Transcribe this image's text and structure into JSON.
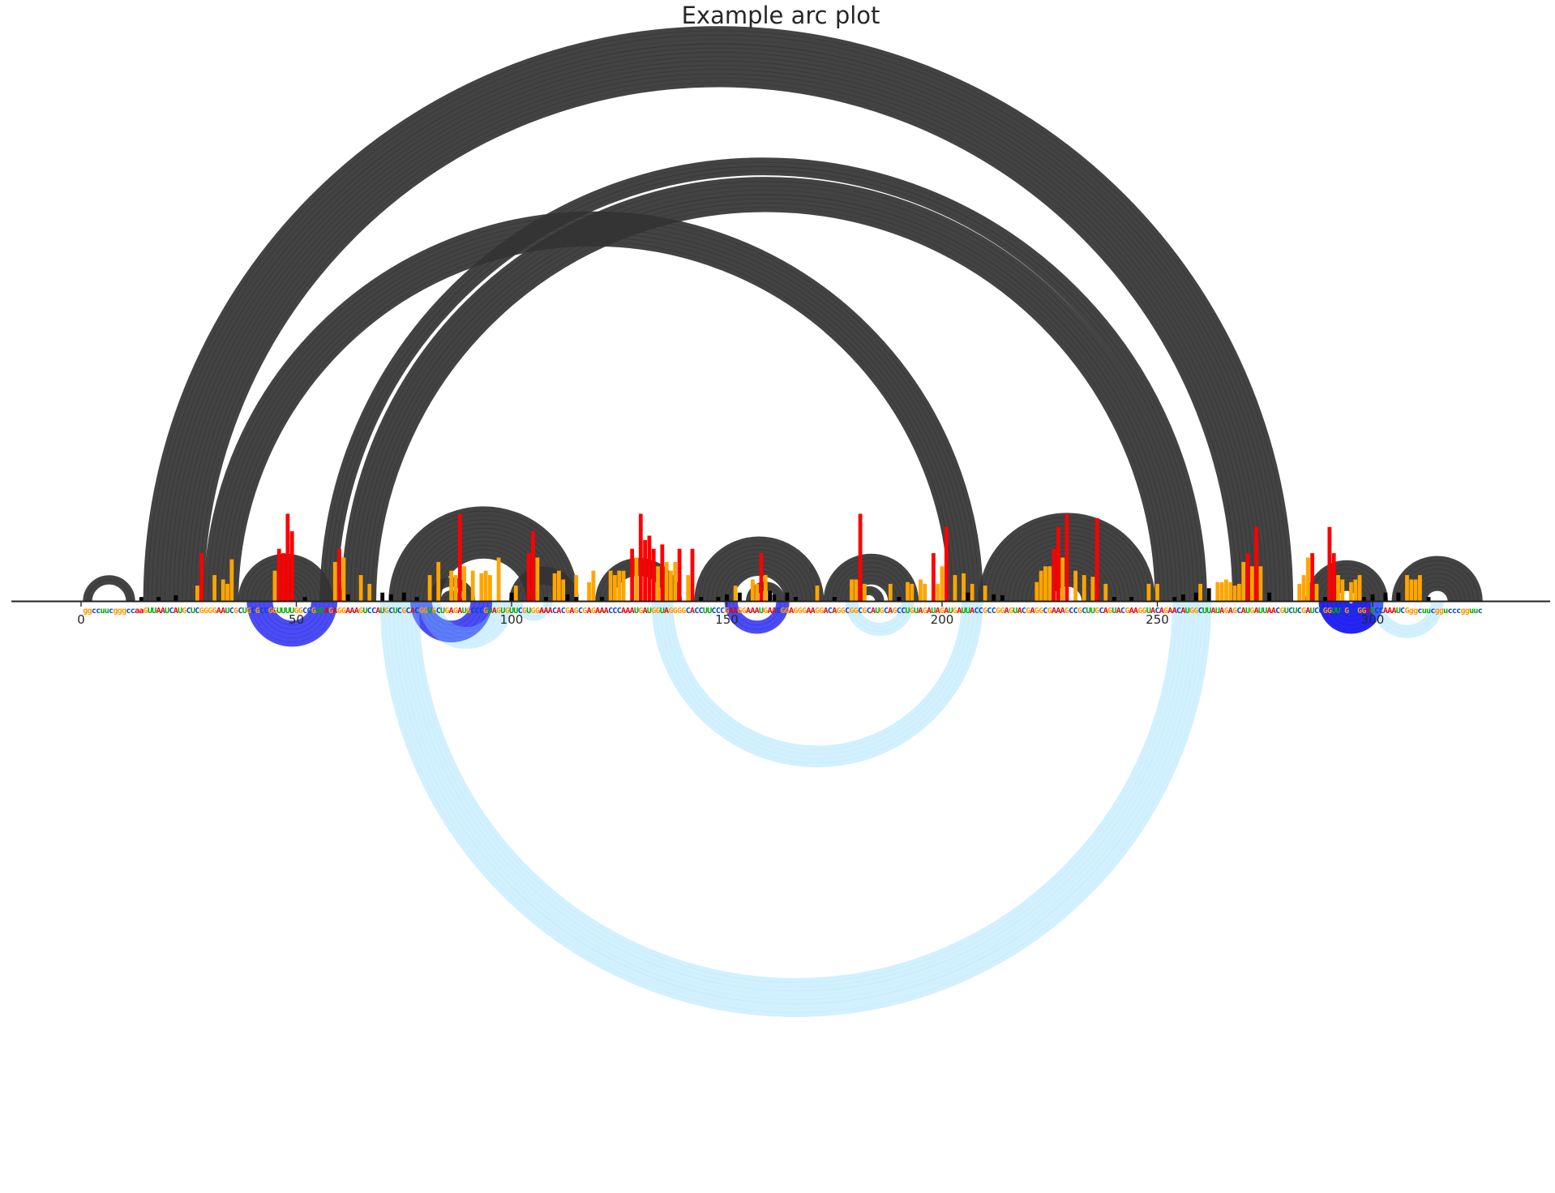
{
  "chart_data": {
    "type": "arc",
    "title": "Example arc plot",
    "xlabel": "",
    "ylabel": "",
    "xlim": [
      -15,
      342
    ],
    "x_ticks": [
      0,
      50,
      100,
      150,
      200,
      250,
      300
    ],
    "grid": false,
    "sequence": "ggccuucgggccaaGUUAAUCAUGCUCGGGGAAUCGCUGCGCCGGUUUUGGCCGUUAGAGGAAAGUCCAUGCUCGCACGGUGCUGAGAUGCCCGUAGUGUUCGUGGAAACACGAGCGAGAAACCCAAAUGAUGGUAGGGGCACCUUCCCGAAGGAAAUGAACGGAGGGAAGGACAGGCGGCGCAUGCAGCCUGUAGAUAGAUGAUUACCGCCGGAGUACGAGGCGAAAGCCGCUUGCAGUACGAAGGUACAGAACAUGGCUUAUAGAGCAUGAUUAACGUCUCGAUCCGGUUCGCCGGAUCCAAAUCGggcuucggucccgguuc",
    "nucleotide_colors": {
      "A": "#e60000",
      "C": "#0044cc",
      "G": "#ff9900",
      "U": "#00aa00"
    },
    "helices_top": [
      {
        "i": 1,
        "j": 12,
        "n": 2
      },
      {
        "i": 15,
        "j": 281,
        "n": 14
      },
      {
        "i": 29,
        "j": 209,
        "n": 8
      },
      {
        "i": 37,
        "j": 58,
        "n": 11
      },
      {
        "i": 56,
        "j": 261,
        "n": 2
      },
      {
        "i": 58,
        "j": 259,
        "n": 2
      },
      {
        "i": 61,
        "j": 257,
        "n": 8
      },
      {
        "i": 72,
        "j": 115,
        "n": 12
      },
      {
        "i": 81,
        "j": 91,
        "n": 2
      },
      {
        "i": 84,
        "j": 88,
        "n": 2
      },
      {
        "i": 100,
        "j": 115,
        "n": 4
      },
      {
        "i": 120,
        "j": 139,
        "n": 4
      },
      {
        "i": 143,
        "j": 172,
        "n": 9
      },
      {
        "i": 155,
        "j": 163,
        "n": 2
      },
      {
        "i": 173,
        "j": 194,
        "n": 7
      },
      {
        "i": 180,
        "j": 186,
        "n": 2
      },
      {
        "i": 209,
        "j": 249,
        "n": 7
      },
      {
        "i": 216,
        "j": 242,
        "n": 6
      },
      {
        "i": 222,
        "j": 236,
        "n": 4
      },
      {
        "i": 285,
        "j": 303,
        "n": 7
      },
      {
        "i": 305,
        "j": 325,
        "n": 8
      }
    ],
    "helices_bottom": [
      {
        "i": 39,
        "j": 59,
        "n": 6,
        "color": "#0000ee",
        "alpha": 0.7
      },
      {
        "i": 77,
        "j": 95,
        "n": 5,
        "color": "#0000ee",
        "alpha": 0.7
      },
      {
        "i": 150,
        "j": 164,
        "n": 3,
        "color": "#0000ee",
        "alpha": 0.7
      },
      {
        "i": 288,
        "j": 302,
        "n": 7,
        "color": "#0000ee",
        "alpha": 0.85
      },
      {
        "i": 70,
        "j": 262,
        "n": 9,
        "color": "#7fd4fb",
        "alpha": 0.35
      },
      {
        "i": 133,
        "j": 209,
        "n": 5,
        "color": "#7fd4fb",
        "alpha": 0.35
      },
      {
        "i": 79,
        "j": 100,
        "n": 5,
        "color": "#7fd4fb",
        "alpha": 0.35
      },
      {
        "i": 101,
        "j": 109,
        "n": 2,
        "color": "#7fd4fb",
        "alpha": 0.35
      },
      {
        "i": 178,
        "j": 193,
        "n": 3,
        "color": "#7fd4fb",
        "alpha": 0.35
      },
      {
        "i": 300,
        "j": 316,
        "n": 3,
        "color": "#7fd4fb",
        "alpha": 0.35
      }
    ],
    "reactivity_bars": [
      [
        27,
        0.18
      ],
      [
        28,
        0.55
      ],
      [
        31,
        0.3
      ],
      [
        33,
        0.25
      ],
      [
        34,
        0.2
      ],
      [
        35,
        0.48
      ],
      [
        45,
        0.35
      ],
      [
        46,
        0.6
      ],
      [
        47,
        0.55
      ],
      [
        48,
        1.0
      ],
      [
        49,
        0.8
      ],
      [
        59,
        0.45
      ],
      [
        60,
        0.6
      ],
      [
        61,
        0.5
      ],
      [
        65,
        0.3
      ],
      [
        67,
        0.2
      ],
      [
        81,
        0.3
      ],
      [
        83,
        0.45
      ],
      [
        86,
        0.35
      ],
      [
        87,
        0.3
      ],
      [
        88,
        1.0
      ],
      [
        89,
        0.4
      ],
      [
        91,
        0.35
      ],
      [
        93,
        0.32
      ],
      [
        94,
        0.35
      ],
      [
        95,
        0.3
      ],
      [
        97,
        0.5
      ],
      [
        101,
        0.18
      ],
      [
        104,
        0.55
      ],
      [
        105,
        0.8
      ],
      [
        106,
        0.5
      ],
      [
        110,
        0.32
      ],
      [
        111,
        0.35
      ],
      [
        112,
        0.25
      ],
      [
        115,
        0.3
      ],
      [
        118,
        0.22
      ],
      [
        119,
        0.35
      ],
      [
        123,
        0.35
      ],
      [
        124,
        0.3
      ],
      [
        125,
        0.35
      ],
      [
        126,
        0.35
      ],
      [
        128,
        0.6
      ],
      [
        129,
        0.5
      ],
      [
        130,
        1.0
      ],
      [
        131,
        0.7
      ],
      [
        132,
        0.75
      ],
      [
        133,
        0.6
      ],
      [
        134,
        0.4
      ],
      [
        135,
        0.65
      ],
      [
        136,
        0.45
      ],
      [
        137,
        0.35
      ],
      [
        138,
        0.45
      ],
      [
        139,
        0.6
      ],
      [
        141,
        0.3
      ],
      [
        142,
        0.6
      ],
      [
        152,
        0.18
      ],
      [
        156,
        0.25
      ],
      [
        157,
        0.2
      ],
      [
        158,
        0.55
      ],
      [
        159,
        0.3
      ],
      [
        171,
        0.18
      ],
      [
        179,
        0.25
      ],
      [
        180,
        0.25
      ],
      [
        181,
        1.0
      ],
      [
        182,
        0.2
      ],
      [
        188,
        0.2
      ],
      [
        192,
        0.22
      ],
      [
        193,
        0.2
      ],
      [
        195,
        0.25
      ],
      [
        196,
        0.2
      ],
      [
        198,
        0.55
      ],
      [
        199,
        0.2
      ],
      [
        200,
        0.4
      ],
      [
        201,
        0.85
      ],
      [
        203,
        0.3
      ],
      [
        205,
        0.32
      ],
      [
        207,
        0.2
      ],
      [
        210,
        0.18
      ],
      [
        222,
        0.22
      ],
      [
        223,
        0.35
      ],
      [
        224,
        0.4
      ],
      [
        225,
        0.4
      ],
      [
        226,
        0.6
      ],
      [
        227,
        0.85
      ],
      [
        228,
        0.5
      ],
      [
        229,
        1.0
      ],
      [
        231,
        0.35
      ],
      [
        233,
        0.3
      ],
      [
        235,
        0.28
      ],
      [
        236,
        0.95
      ],
      [
        238,
        0.2
      ],
      [
        248,
        0.2
      ],
      [
        250,
        0.2
      ],
      [
        260,
        0.2
      ],
      [
        264,
        0.22
      ],
      [
        265,
        0.22
      ],
      [
        266,
        0.25
      ],
      [
        267,
        0.22
      ],
      [
        268,
        0.18
      ],
      [
        269,
        0.2
      ],
      [
        270,
        0.45
      ],
      [
        271,
        0.55
      ],
      [
        272,
        0.4
      ],
      [
        273,
        0.85
      ],
      [
        274,
        0.4
      ],
      [
        283,
        0.2
      ],
      [
        284,
        0.3
      ],
      [
        285,
        0.5
      ],
      [
        286,
        0.55
      ],
      [
        287,
        0.2
      ],
      [
        290,
        0.85
      ],
      [
        291,
        0.55
      ],
      [
        292,
        0.3
      ],
      [
        293,
        0.25
      ],
      [
        295,
        0.22
      ],
      [
        296,
        0.25
      ],
      [
        297,
        0.3
      ],
      [
        308,
        0.3
      ],
      [
        309,
        0.25
      ],
      [
        310,
        0.25
      ],
      [
        311,
        0.3
      ],
      [
        14,
        0.05
      ],
      [
        18,
        0.05
      ],
      [
        22,
        0.07
      ],
      [
        52,
        0.05
      ],
      [
        62,
        0.08
      ],
      [
        70,
        0.1
      ],
      [
        72,
        0.08
      ],
      [
        75,
        0.1
      ],
      [
        78,
        0.05
      ],
      [
        100,
        0.1
      ],
      [
        108,
        0.05
      ],
      [
        113,
        0.08
      ],
      [
        115,
        0.05
      ],
      [
        121,
        0.05
      ],
      [
        144,
        0.05
      ],
      [
        148,
        0.05
      ],
      [
        150,
        0.08
      ],
      [
        153,
        0.1
      ],
      [
        160,
        0.12
      ],
      [
        161,
        0.08
      ],
      [
        164,
        0.1
      ],
      [
        166,
        0.05
      ],
      [
        175,
        0.05
      ],
      [
        190,
        0.05
      ],
      [
        206,
        0.1
      ],
      [
        212,
        0.08
      ],
      [
        214,
        0.07
      ],
      [
        240,
        0.05
      ],
      [
        244,
        0.05
      ],
      [
        254,
        0.05
      ],
      [
        256,
        0.08
      ],
      [
        259,
        0.1
      ],
      [
        262,
        0.15
      ],
      [
        276,
        0.1
      ],
      [
        289,
        0.05
      ],
      [
        298,
        0.05
      ],
      [
        300,
        0.08
      ],
      [
        303,
        0.1
      ],
      [
        306,
        0.1
      ],
      [
        313,
        0.05
      ]
    ],
    "bar_colors": {
      "high": "#ff0000",
      "mid": "#ffa500",
      "low": "#000000"
    },
    "arc_color": "#333333"
  }
}
